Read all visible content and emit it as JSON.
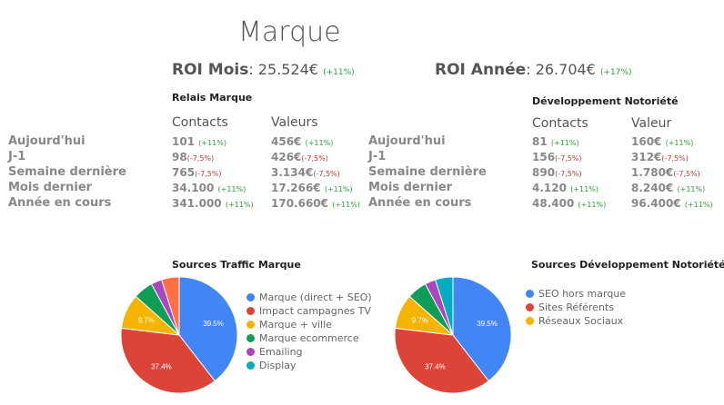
{
  "title": "Marque",
  "roi_mois": {
    "label": "ROI Mois",
    "value": ": 25.524€",
    "pct": "(+11%)"
  },
  "roi_annee": {
    "label": "ROI Année",
    "value": ": 26.704€",
    "pct": "(+17%)"
  },
  "row_labels": [
    "Aujourd'hui",
    "J-1",
    "Semaine dernière",
    "Mois dernier",
    "Année en cours"
  ],
  "relais": {
    "title": "Relais Marque",
    "col1": "Contacts",
    "col2": "Valeurs",
    "contacts": [
      {
        "v": "101",
        "p": "(+11%)",
        "t": "pos"
      },
      {
        "v": "98",
        "p": "(-7,5%)",
        "t": "neg"
      },
      {
        "v": "765",
        "p": "(-7,5%)",
        "t": "neg"
      },
      {
        "v": "34.100",
        "p": "(+11%)",
        "t": "pos"
      },
      {
        "v": "341.000",
        "p": "(+11%)",
        "t": "pos"
      }
    ],
    "valeurs": [
      {
        "v": "456€",
        "p": "(+11%)",
        "t": "pos"
      },
      {
        "v": "426€",
        "p": "(-7,5%)",
        "t": "neg"
      },
      {
        "v": "3.134€",
        "p": "(-7,5%)",
        "t": "neg"
      },
      {
        "v": "17.266€",
        "p": "(+11%)",
        "t": "pos"
      },
      {
        "v": "170.660€",
        "p": "(+11%)",
        "t": "pos"
      }
    ]
  },
  "dev": {
    "title": "Développement Notoriété",
    "col1": "Contacts",
    "col2": "Valeur",
    "contacts": [
      {
        "v": "81",
        "p": "(+11%)",
        "t": "pos"
      },
      {
        "v": "156",
        "p": "(-7,5%)",
        "t": "neg"
      },
      {
        "v": "890",
        "p": "(-7,5%)",
        "t": "neg"
      },
      {
        "v": "4.120",
        "p": "(+11%)",
        "t": "pos"
      },
      {
        "v": "48.400",
        "p": "(+11%)",
        "t": "pos"
      }
    ],
    "valeurs": [
      {
        "v": "160€",
        "p": "(+11%)",
        "t": "pos"
      },
      {
        "v": "312€",
        "p": "(-7,5%)",
        "t": "neg"
      },
      {
        "v": "1.780€",
        "p": "(-7,5%)",
        "t": "neg"
      },
      {
        "v": "8.240€",
        "p": "(+11%)",
        "t": "pos"
      },
      {
        "v": "96.400€",
        "p": "(+11%)",
        "t": "pos"
      }
    ]
  },
  "chart_data": [
    {
      "type": "pie",
      "title": "Sources Traffic Marque",
      "categories": [
        "Marque (direct + SEO)",
        "Impact campagnes TV",
        "Marque + ville",
        "Marque ecommerce",
        "Emailing",
        "Display"
      ],
      "values": [
        39.5,
        37.4,
        9.7,
        5.5,
        3.0,
        4.9
      ],
      "labels": [
        "39.5%",
        "37.4%",
        "9.7%",
        "",
        "",
        ""
      ],
      "colors": [
        "#4285f4",
        "#db4437",
        "#f4b400",
        "#0f9d58",
        "#ab47bc",
        "#00acc1"
      ],
      "extra_color": "#ff7043",
      "legend_categories": [
        "Marque (direct + SEO)",
        "Impact campagnes TV",
        "Marque + ville",
        "Marque ecommerce",
        "Emailing",
        "Display"
      ]
    },
    {
      "type": "pie",
      "title": "Sources Développement Notoriété",
      "categories": [
        "SEO hors marque",
        "Sites Référents",
        "Réseaux Sociaux",
        "",
        "",
        ""
      ],
      "values": [
        39.5,
        37.4,
        9.7,
        5.5,
        3.0,
        4.9
      ],
      "labels": [
        "39.5%",
        "37.4%",
        "9.7%",
        "",
        "",
        ""
      ],
      "colors": [
        "#4285f4",
        "#db4437",
        "#f4b400",
        "#0f9d58",
        "#ab47bc",
        "#00acc1"
      ],
      "legend_categories": [
        "SEO hors marque",
        "Sites Référents",
        "Réseaux Sociaux"
      ]
    }
  ]
}
